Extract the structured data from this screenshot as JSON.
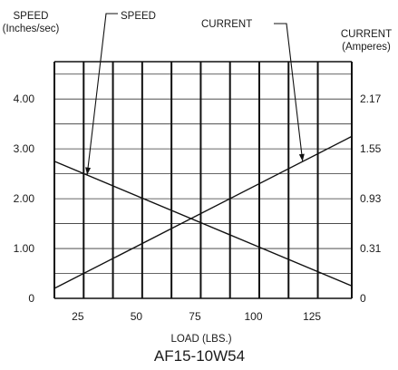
{
  "chart_data": {
    "type": "line",
    "title": "AF15-10W54",
    "xlabel": "LOAD (LBS.)",
    "ylabel_left": [
      "SPEED",
      "(Inches/sec)"
    ],
    "ylabel_right": [
      "CURRENT",
      "(Amperes)"
    ],
    "xlim": [
      15,
      142
    ],
    "ylim": [
      0,
      4.75
    ],
    "x_ticks": [
      {
        "value": 25,
        "label": "25"
      },
      {
        "value": 50,
        "label": "50"
      },
      {
        "value": 75,
        "label": "75"
      },
      {
        "value": 100,
        "label": "100"
      },
      {
        "value": 125,
        "label": "125"
      }
    ],
    "y_ticks_left": [
      {
        "value": 0,
        "label": "0"
      },
      {
        "value": 1.0,
        "label": "1.00"
      },
      {
        "value": 2.0,
        "label": "2.00"
      },
      {
        "value": 3.0,
        "label": "3.00"
      },
      {
        "value": 4.0,
        "label": "4.00"
      }
    ],
    "y_ticks_right": [
      {
        "value": 0,
        "label": "0"
      },
      {
        "value": 1.0,
        "label": "0.31"
      },
      {
        "value": 2.0,
        "label": "0.93"
      },
      {
        "value": 3.0,
        "label": "1.55"
      },
      {
        "value": 4.0,
        "label": "2.17"
      }
    ],
    "vertical_grid_x": [
      15,
      27.5,
      40,
      52.5,
      65,
      77.5,
      90,
      102.5,
      115,
      127.5,
      142
    ],
    "horizontal_grid_y": [
      0.5,
      1.0,
      1.5,
      2.0,
      2.5,
      3.0,
      3.5,
      4.0,
      4.5
    ],
    "series": [
      {
        "name": "SPEED",
        "x": [
          15,
          142
        ],
        "y": [
          2.75,
          0.25
        ]
      },
      {
        "name": "CURRENT",
        "x": [
          15,
          142
        ],
        "y": [
          0.2,
          3.25
        ]
      }
    ],
    "annotations": [
      {
        "label": "SPEED",
        "series": "SPEED",
        "point": [
          29,
          2.48
        ]
      },
      {
        "label": "CURRENT",
        "series": "CURRENT",
        "point": [
          121,
          2.75
        ]
      }
    ],
    "grid": true,
    "legend": "none"
  }
}
